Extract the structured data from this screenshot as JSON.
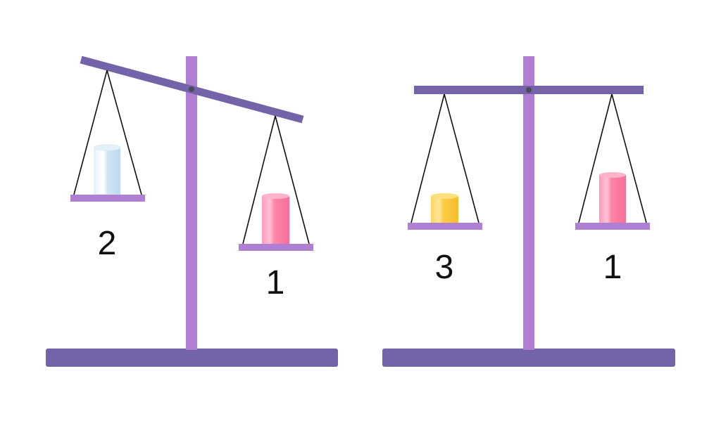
{
  "colors": {
    "base": "#7463a8",
    "pole": "#b07fd4",
    "beam": "#7463a8",
    "pan": "#b07fd4",
    "string": "#111111",
    "pivot": "#4a4a5a",
    "cylinder_blue": "#cfe6f3",
    "cylinder_pink": "#fc86a9",
    "cylinder_yellow": "#fdcc47"
  },
  "scales": [
    {
      "state": "tilted-left-down",
      "left": {
        "label": "2",
        "object": "cylinder_blue"
      },
      "right": {
        "label": "1",
        "object": "cylinder_pink"
      }
    },
    {
      "state": "balanced",
      "left": {
        "label": "3",
        "object": "cylinder_yellow"
      },
      "right": {
        "label": "1",
        "object": "cylinder_pink"
      }
    }
  ]
}
